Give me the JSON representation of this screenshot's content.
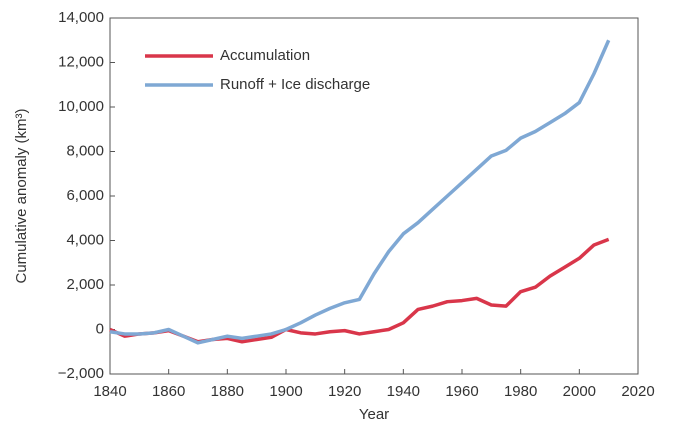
{
  "chart_data": {
    "type": "line",
    "xlabel": "Year",
    "ylabel": "Cumulative anomaly (km³)",
    "x": [
      1840,
      1845,
      1850,
      1855,
      1860,
      1865,
      1870,
      1875,
      1880,
      1885,
      1890,
      1895,
      1900,
      1905,
      1910,
      1915,
      1920,
      1925,
      1930,
      1935,
      1940,
      1945,
      1950,
      1955,
      1960,
      1965,
      1970,
      1975,
      1980,
      1985,
      1990,
      1995,
      2000,
      2005,
      2010
    ],
    "series": [
      {
        "name": "Accumulation",
        "color": "#d9364a",
        "values": [
          0,
          -300,
          -200,
          -150,
          -50,
          -300,
          -550,
          -450,
          -400,
          -550,
          -450,
          -350,
          0,
          -150,
          -200,
          -100,
          -50,
          -200,
          -100,
          0,
          300,
          900,
          1050,
          1250,
          1300,
          1400,
          1100,
          1050,
          1700,
          1900,
          2400,
          2800,
          3200,
          3800,
          4050
        ]
      },
      {
        "name": "Runoff + Ice discharge",
        "color": "#7fa8d4",
        "values": [
          -100,
          -200,
          -200,
          -150,
          0,
          -300,
          -600,
          -450,
          -300,
          -400,
          -300,
          -200,
          0,
          300,
          650,
          950,
          1200,
          1350,
          2500,
          3500,
          4300,
          4800,
          5400,
          6000,
          6600,
          7200,
          7800,
          8050,
          8600,
          8900,
          9300,
          9700,
          10200,
          11500,
          13000
        ]
      }
    ],
    "xlim": [
      1840,
      2020
    ],
    "xticks": [
      1840,
      1860,
      1880,
      1900,
      1920,
      1940,
      1960,
      1980,
      2000,
      2020
    ],
    "ylim": [
      -2000,
      14000
    ],
    "yticks": [
      {
        "value": -2000,
        "label": "−2,000"
      },
      0,
      {
        "value": 2000,
        "label": "2,000"
      },
      {
        "value": 4000,
        "label": "4,000"
      },
      {
        "value": 6000,
        "label": "6,000"
      },
      {
        "value": 8000,
        "label": "8,000"
      },
      {
        "value": 10000,
        "label": "10,000"
      },
      {
        "value": 12000,
        "label": "12,000"
      },
      {
        "value": 14000,
        "label": "14,000"
      }
    ],
    "legend": "upper left"
  }
}
